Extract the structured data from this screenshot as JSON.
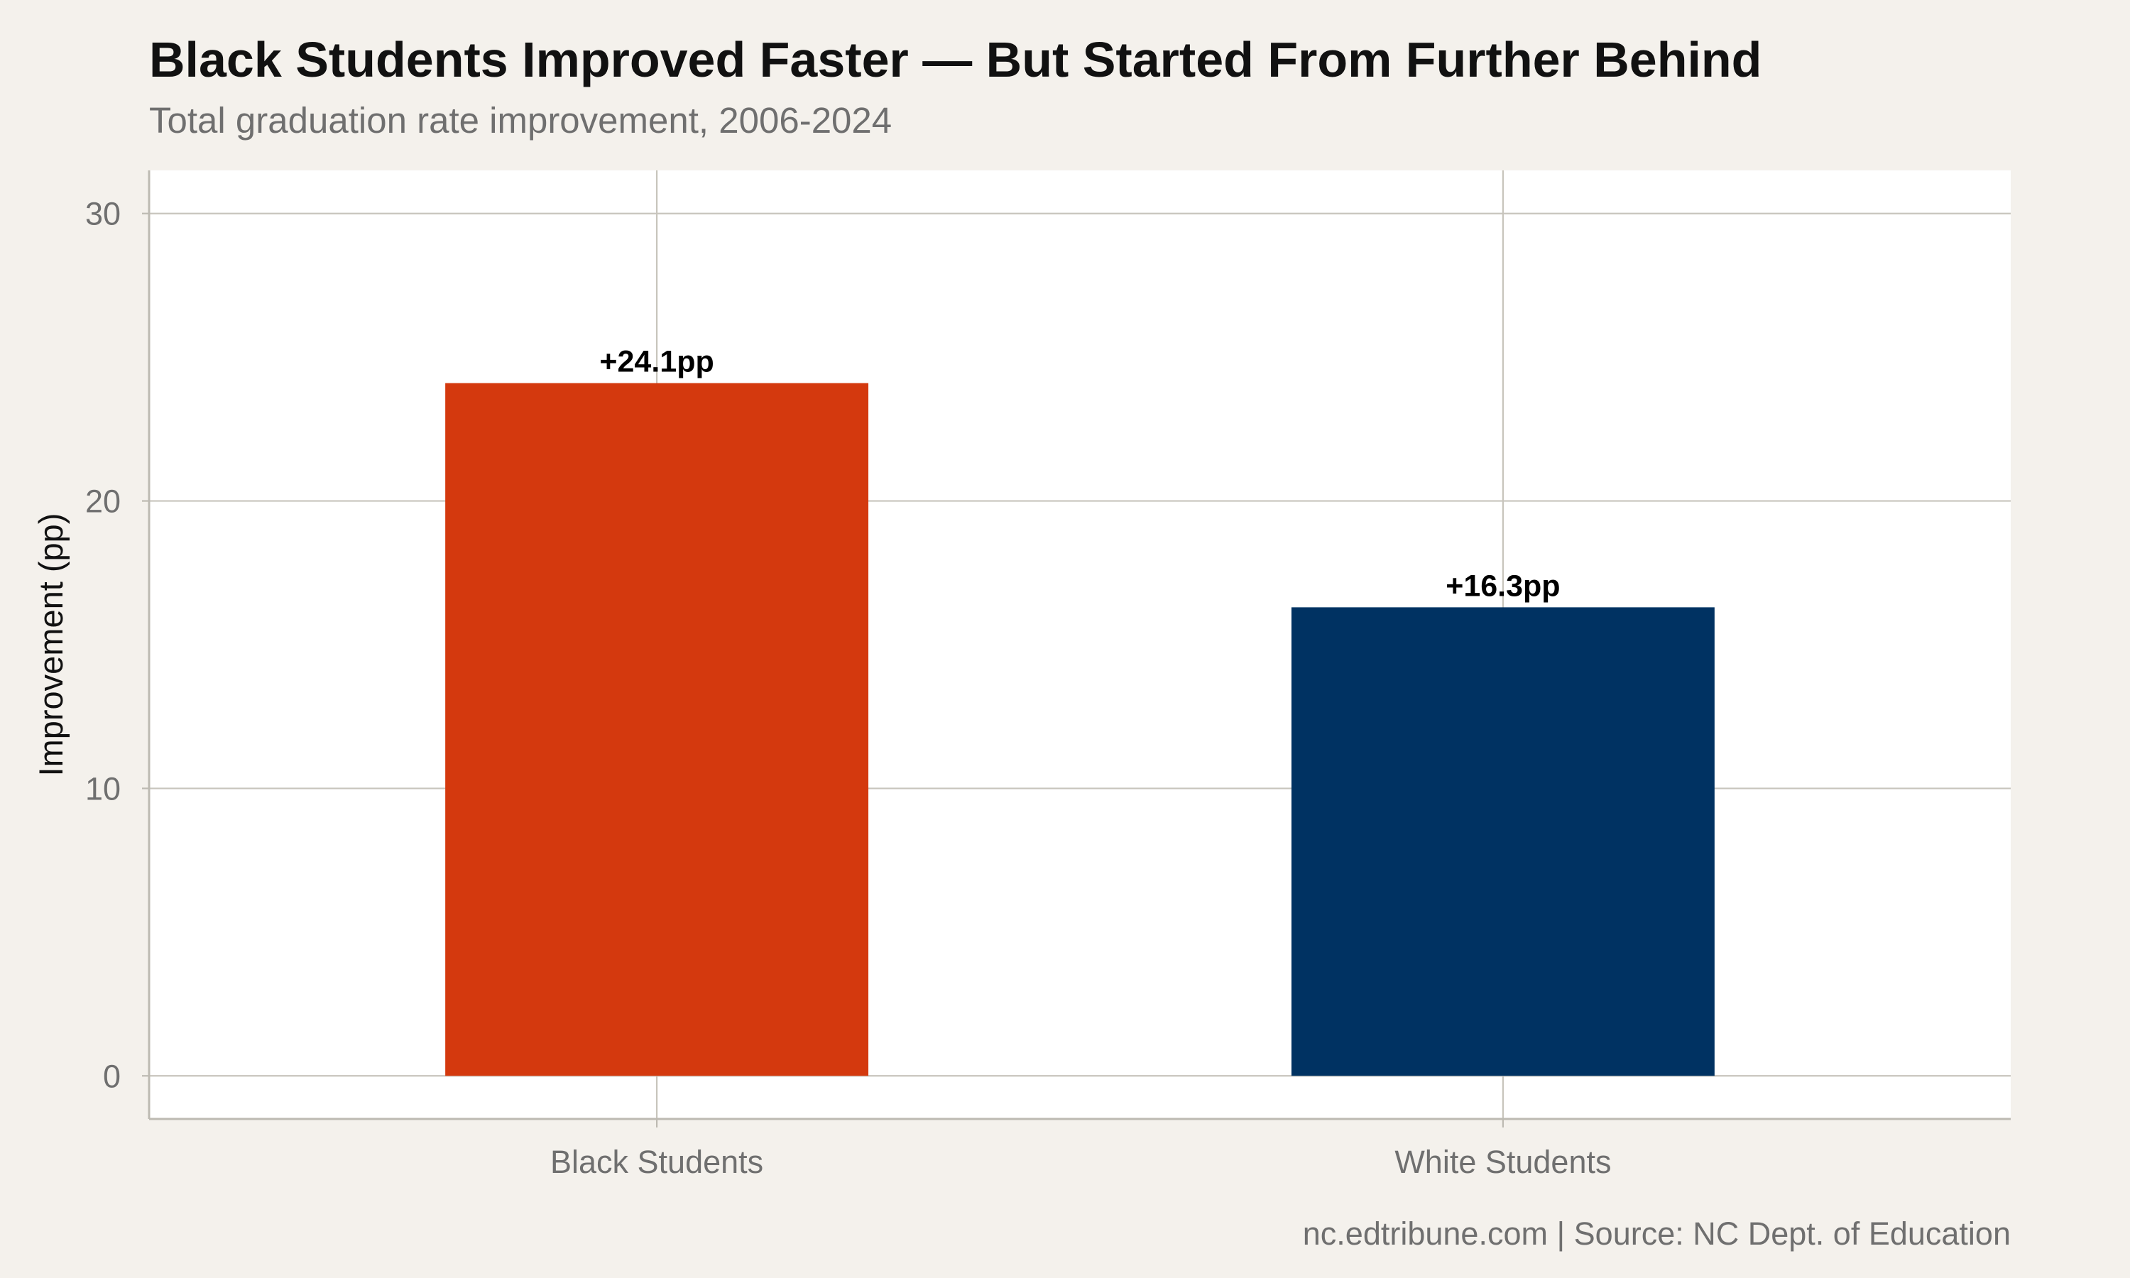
{
  "colors": {
    "background": "#f4f1ec",
    "panel": "#ffffff",
    "grid": "#c8c5bd",
    "axis": "#bdbab2"
  },
  "chart_data": {
    "type": "bar",
    "title": "Black Students Improved Faster — But Started From Further Behind",
    "subtitle": "Total graduation rate improvement, 2006-2024",
    "xlabel": "",
    "ylabel": "Improvement (pp)",
    "categories": [
      "Black Students",
      "White Students"
    ],
    "values": [
      24.1,
      16.3
    ],
    "data_labels": [
      "+24.1pp",
      "+16.3pp"
    ],
    "bar_colors": [
      "#d4390e",
      "#003262"
    ],
    "yticks": [
      0,
      10,
      20,
      30
    ],
    "ylim": [
      -1.5,
      31.5
    ],
    "grid": true,
    "caption": "nc.edtribune.com | Source: NC Dept. of Education"
  }
}
